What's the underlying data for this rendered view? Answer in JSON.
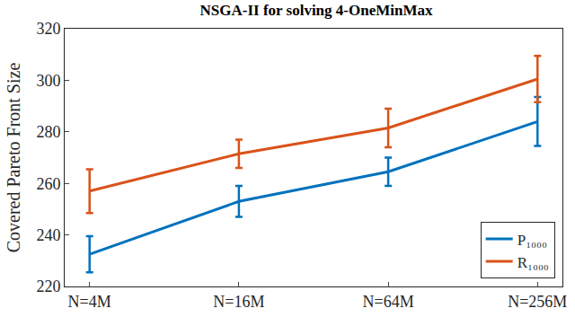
{
  "chart_data": {
    "type": "line",
    "title": "NSGA-II for solving 4-OneMinMax",
    "y_label": "Covered Pareto Front Size",
    "categories": [
      "N=4M",
      "N=16M",
      "N=64M",
      "N=256M"
    ],
    "series": [
      {
        "name": "P₁₀₀₀",
        "color": "#0072BD",
        "values": [
          232.5,
          253,
          264.5,
          284
        ],
        "errors": [
          7,
          6,
          5.5,
          9.5
        ]
      },
      {
        "name": "R₁₀₀₀",
        "color": "#D95319",
        "values": [
          257,
          271.5,
          281.5,
          300.5
        ],
        "errors": [
          8.5,
          5.5,
          7.5,
          9
        ]
      }
    ],
    "ylim": [
      220,
      320
    ],
    "yticks": [
      220,
      240,
      260,
      280,
      300,
      320
    ],
    "grid": false,
    "legend": "bottom right"
  }
}
